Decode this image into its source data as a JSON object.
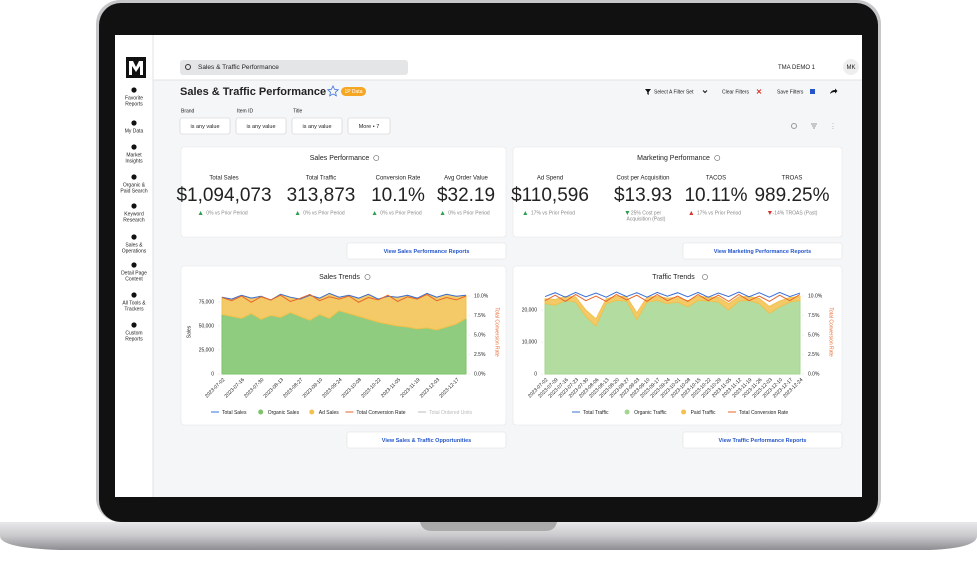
{
  "topbar": {
    "search": "Sales & Traffic Performance",
    "account": "TMA DEMO 1",
    "user": "MK"
  },
  "sidebar": {
    "items": [
      [
        "Favorite",
        "Reports"
      ],
      [
        "My Data"
      ],
      [
        "Market",
        "Insights"
      ],
      [
        "Organic &",
        "Paid Search"
      ],
      [
        "Keyword",
        "Research"
      ],
      [
        "Sales &",
        "Operations"
      ],
      [
        "Detail Page",
        "Content"
      ],
      [
        "All Tools &",
        "Trackers"
      ],
      [
        "Custom",
        "Reports"
      ]
    ]
  },
  "header": {
    "title": "Sales & Traffic Performance",
    "badge": "1P Data",
    "filter_set": "Select A Filter Set",
    "clear": "Clear Filters",
    "save": "Save Filters"
  },
  "filters": [
    {
      "label": "Brand",
      "value": "is any value"
    },
    {
      "label": "Item ID",
      "value": "is any value"
    },
    {
      "label": "Title",
      "value": "is any value"
    }
  ],
  "more": "More • 7",
  "cards": [
    {
      "title": "Sales Performance",
      "button": "View Sales Performance Reports",
      "metrics": [
        {
          "label": "Total Sales",
          "value": "$1,094,073",
          "delta": [
            "0% vs Prior Period"
          ],
          "trend": "up",
          "color": "#2e9e4f"
        },
        {
          "label": "Total Traffic",
          "value": "313,873",
          "delta": [
            "0% vs Prior Period"
          ],
          "trend": "up",
          "color": "#2e9e4f"
        },
        {
          "label": "Conversion Rate",
          "value": "10.1%",
          "delta": [
            "0% vs Prior Period"
          ],
          "trend": "up",
          "color": "#2e9e4f"
        },
        {
          "label": "Avg Order Value",
          "value": "$32.19",
          "delta": [
            "0% vs Prior Period"
          ],
          "trend": "up",
          "color": "#2e9e4f"
        }
      ]
    },
    {
      "title": "Marketing Performance",
      "button": "View Marketing Performance Reports",
      "metrics": [
        {
          "label": "Ad Spend",
          "value": "$110,596",
          "delta": [
            "17% vs Prior Period"
          ],
          "trend": "up",
          "color": "#2e9e4f"
        },
        {
          "label": "Cost per Acquisition",
          "value": "$13.93",
          "delta": [
            "25% Cost per",
            "Acquisition (Past)"
          ],
          "trend": "down",
          "color": "#2e9e4f"
        },
        {
          "label": "TACOS",
          "value": "10.11%",
          "delta": [
            "17% vs Prior Period"
          ],
          "trend": "up",
          "color": "#d9312b"
        },
        {
          "label": "TROAS",
          "value": "989.25%",
          "delta": [
            "-14% TROAS (Past)"
          ],
          "trend": "down",
          "color": "#d9312b"
        }
      ]
    }
  ],
  "chart_buttons": [
    "View Sales & Traffic Opportunities",
    "View Traffic Performance Reports"
  ],
  "chart_data": [
    {
      "type": "line",
      "title": "Sales Trends",
      "ylabel": "Sales",
      "y2label": "Total Conversion Rate",
      "categories": [
        "2023-07-02",
        null,
        "2023-07-16",
        null,
        "2023-07-30",
        null,
        "2023-08-13",
        null,
        "2023-08-27",
        null,
        "2023-09-10",
        null,
        "2023-09-24",
        null,
        "2023-10-08",
        null,
        "2023-10-22",
        null,
        "2023-11-05",
        null,
        "2023-11-19",
        null,
        "2023-12-03",
        null,
        "2023-12-17",
        null
      ],
      "ylim": [
        0,
        87500
      ],
      "yticks": [
        0,
        {
          "value": 25000,
          "label": "25,000"
        },
        {
          "value": 50000,
          "label": "50,000"
        },
        {
          "value": 75000,
          "label": "75,000"
        }
      ],
      "y2lim": [
        0,
        10.77
      ],
      "y2ticks": [
        {
          "value": 0,
          "label": "0.0%"
        },
        {
          "value": 2.5,
          "label": "2.5%"
        },
        {
          "value": 5,
          "label": "5.0%"
        },
        {
          "value": 7.5,
          "label": "7.5%"
        },
        {
          "value": 10,
          "label": "10.0%"
        }
      ],
      "series": [
        {
          "name": "Total Sales",
          "color": "#3a6fd8",
          "style": "line",
          "values": [
            80000,
            78000,
            82000,
            79000,
            81000,
            77000,
            83000,
            80000,
            78000,
            82000,
            79000,
            84000,
            80000,
            82000,
            79000,
            83000,
            78000,
            81000,
            80000,
            82000,
            79000,
            84000,
            80000,
            83000,
            81000,
            82000
          ]
        },
        {
          "name": "Organic Sales",
          "color": "#7cc36a",
          "style": "area",
          "values": [
            62000,
            60000,
            58000,
            63000,
            57000,
            61000,
            59000,
            64000,
            60000,
            56000,
            62000,
            58000,
            66000,
            63000,
            60000,
            57000,
            54000,
            52000,
            50000,
            49000,
            47000,
            48000,
            46000,
            49000,
            52000,
            58000
          ]
        },
        {
          "name": "Ad Sales",
          "color": "#f2c14e",
          "style": "area",
          "stack": true,
          "values": [
            18000,
            18000,
            24000,
            16000,
            24000,
            16000,
            24000,
            16000,
            18000,
            26000,
            17000,
            26000,
            14000,
            19000,
            19000,
            26000,
            24000,
            29000,
            30000,
            33000,
            32000,
            36000,
            34000,
            34000,
            29000,
            24000
          ]
        },
        {
          "name": "Total Conversion Rate",
          "color": "#e8662a",
          "style": "line",
          "axis": "y2",
          "values": [
            9.8,
            9.4,
            10.0,
            9.2,
            9.9,
            9.5,
            10.1,
            9.3,
            9.7,
            10.2,
            9.4,
            9.9,
            9.6,
            10.0,
            9.2,
            9.8,
            9.5,
            10.1,
            9.3,
            9.9,
            9.6,
            10.2,
            9.4,
            9.8,
            9.5,
            10.0
          ]
        },
        {
          "name": "Total Ordered Units",
          "color": "#bbbbbb",
          "hidden": true
        }
      ]
    },
    {
      "type": "line",
      "title": "Traffic Trends",
      "y2label": "Total Conversion Rate",
      "categories": [
        "2023-07-02",
        "2023-07-09",
        "2023-07-16",
        "2023-07-23",
        "2023-07-30",
        "2023-08-06",
        "2023-08-13",
        "2023-08-20",
        "2023-08-27",
        "2023-09-03",
        "2023-09-10",
        "2023-09-17",
        "2023-09-24",
        "2023-10-01",
        "2023-10-08",
        "2023-10-15",
        "2023-10-22",
        "2023-10-29",
        "2023-11-05",
        "2023-11-12",
        "2023-11-19",
        "2023-11-26",
        "2023-12-03",
        "2023-12-10",
        "2023-12-17",
        "2023-12-24"
      ],
      "ylim": [
        0,
        26250
      ],
      "yticks": [
        0,
        {
          "value": 10000,
          "label": "10,000"
        },
        {
          "value": 20000,
          "label": "20,000"
        }
      ],
      "y2lim": [
        0,
        10.77
      ],
      "y2ticks": [
        {
          "value": 0,
          "label": "0.0%"
        },
        {
          "value": 2.5,
          "label": "2.5%"
        },
        {
          "value": 5,
          "label": "5.0%"
        },
        {
          "value": 7.5,
          "label": "7.5%"
        },
        {
          "value": 10,
          "label": "10.0%"
        }
      ],
      "series": [
        {
          "name": "Total Traffic",
          "color": "#3a6fd8",
          "style": "line",
          "values": [
            24200,
            25400,
            24000,
            25500,
            24100,
            25300,
            24000,
            25600,
            24200,
            25400,
            24000,
            25500,
            24300,
            25400,
            24100,
            25500,
            24000,
            25300,
            24200,
            25600,
            24100,
            25400,
            24000,
            25500,
            24200,
            25300
          ]
        },
        {
          "name": "Organic Traffic",
          "color": "#a5d68f",
          "style": "area",
          "values": [
            22000,
            21500,
            23000,
            22500,
            18000,
            15000,
            22000,
            23000,
            22800,
            17000,
            22500,
            23000,
            22000,
            22500,
            21000,
            23000,
            22800,
            22500,
            20000,
            22800,
            23000,
            22000,
            19000,
            21000,
            22500,
            23000
          ]
        },
        {
          "name": "Paid Traffic",
          "color": "#f2c14e",
          "style": "area",
          "stack": true,
          "values": [
            1500,
            1800,
            1200,
            1600,
            2000,
            2200,
            1500,
            1300,
            1400,
            2100,
            1500,
            1200,
            1700,
            1400,
            1900,
            1300,
            1200,
            1500,
            2000,
            1300,
            1200,
            1600,
            2100,
            1800,
            1400,
            1200
          ]
        },
        {
          "name": "Total Conversion Rate",
          "color": "#e8662a",
          "style": "line",
          "axis": "y2",
          "values": [
            9.4,
            10.1,
            9.3,
            10.2,
            9.4,
            10.0,
            9.3,
            10.2,
            9.5,
            10.1,
            9.3,
            10.2,
            9.4,
            10.0,
            9.3,
            10.2,
            9.4,
            10.1,
            9.3,
            10.2,
            9.4,
            10.0,
            9.3,
            10.1,
            9.4,
            10.2
          ]
        }
      ]
    }
  ]
}
